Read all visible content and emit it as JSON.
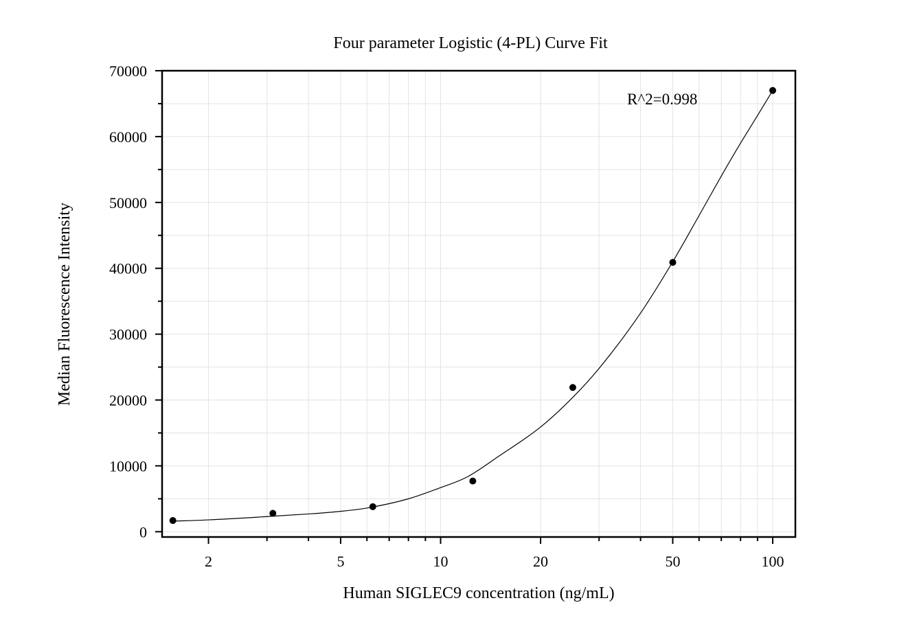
{
  "chart_data": {
    "type": "scatter",
    "title": "Four parameter Logistic (4-PL) Curve Fit",
    "xlabel": "Human SIGLEC9 concentration (ng/mL)",
    "ylabel": "Median Fluorescence Intensity",
    "x_scale": "log",
    "xlim": [
      1.45,
      117
    ],
    "ylim": [
      -800,
      70000
    ],
    "x_ticks": [
      2,
      5,
      10,
      20,
      50,
      100
    ],
    "x_tick_labels": [
      "2",
      "5",
      "10",
      "20",
      "50",
      "100"
    ],
    "y_ticks": [
      0,
      10000,
      20000,
      30000,
      40000,
      50000,
      60000,
      70000
    ],
    "y_tick_labels": [
      "0",
      "10000",
      "20000",
      "30000",
      "40000",
      "50000",
      "60000",
      "70000"
    ],
    "grid": true,
    "series": [
      {
        "x": [
          1.5625,
          3.125,
          6.25,
          12.5,
          25,
          50,
          100
        ],
        "y": [
          1700,
          2800,
          3800,
          7700,
          21900,
          40900,
          67000
        ]
      }
    ],
    "fit_curve": {
      "model": "4PL",
      "r_squared_label": "R^2=0.998",
      "x": [
        1.5625,
        2,
        3,
        4,
        5,
        6,
        8,
        10,
        12,
        15,
        20,
        25,
        30,
        40,
        50,
        60,
        70,
        80,
        90,
        100
      ],
      "y": [
        1600,
        1800,
        2300,
        2700,
        3100,
        3600,
        5000,
        6700,
        8300,
        11500,
        15900,
        20400,
        24800,
        33200,
        41000,
        48000,
        54000,
        59000,
        63200,
        67000
      ]
    }
  }
}
